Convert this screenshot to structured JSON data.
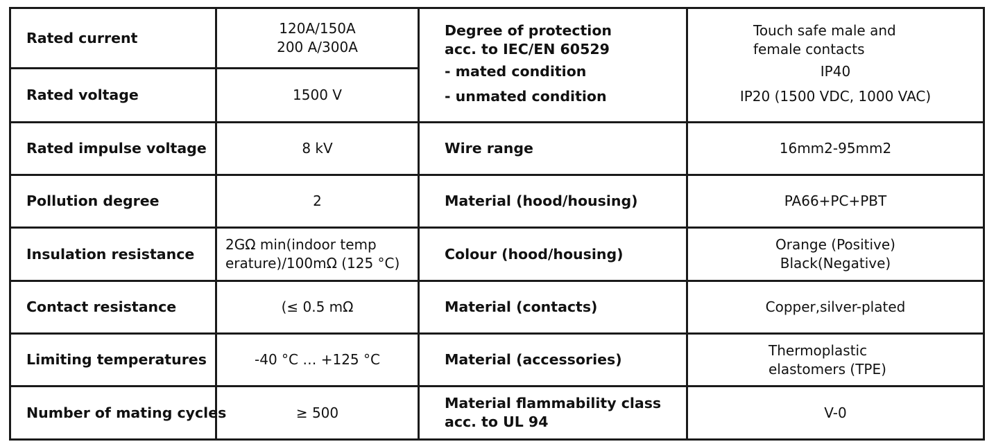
{
  "left_rows": [
    {
      "label": "Rated current",
      "value_lines": [
        "120A/150A",
        "200 A/300A"
      ]
    },
    {
      "label": "Rated voltage",
      "value_lines": [
        "1500 V"
      ]
    },
    {
      "label": "Rated impulse voltage",
      "value_lines": [
        "8 kV"
      ]
    },
    {
      "label": "Pollution degree",
      "value_lines": [
        "2"
      ]
    },
    {
      "label": "Insulation resistance",
      "value_lines": [
        "2GΩ min(indoor temp",
        "erature)/100mΩ (125 °C)"
      ]
    },
    {
      "label": "Contact resistance",
      "value_lines": [
        "(≤ 0.5 mΩ"
      ]
    },
    {
      "label": "Limiting temperatures",
      "value_lines": [
        "-40 °C … +125 °C"
      ]
    },
    {
      "label": "Number of mating cycles",
      "value_lines": [
        "≥ 500"
      ]
    }
  ],
  "right_top": {
    "label_lines": [
      "Degree of protection",
      "acc. to IEC/EN 60529",
      "- mated condition",
      "- unmated condition"
    ],
    "value_lines": [
      "Touch safe male and",
      "female contacts",
      "IP40",
      "IP20 (1500 VDC, 1000 VAC)"
    ]
  },
  "right_rows": [
    {
      "label_lines": [
        "Wire range"
      ],
      "value_lines": [
        "16mm2-95mm2"
      ]
    },
    {
      "label_lines": [
        "Material (hood/housing)"
      ],
      "value_lines": [
        "PA66+PC+PBT"
      ]
    },
    {
      "label_lines": [
        "Colour (hood/housing)"
      ],
      "value_lines": [
        "Orange (Positive)",
        "Black(Negative)"
      ]
    },
    {
      "label_lines": [
        "Material (contacts)"
      ],
      "value_lines": [
        "Copper,silver-plated"
      ]
    },
    {
      "label_lines": [
        "Material (accessories)"
      ],
      "value_lines": [
        "Thermoplastic",
        "elastomers (TPE)"
      ]
    },
    {
      "label_lines": [
        "Material flammability class",
        "acc. to UL 94"
      ],
      "value_lines": [
        "V-0"
      ]
    }
  ]
}
